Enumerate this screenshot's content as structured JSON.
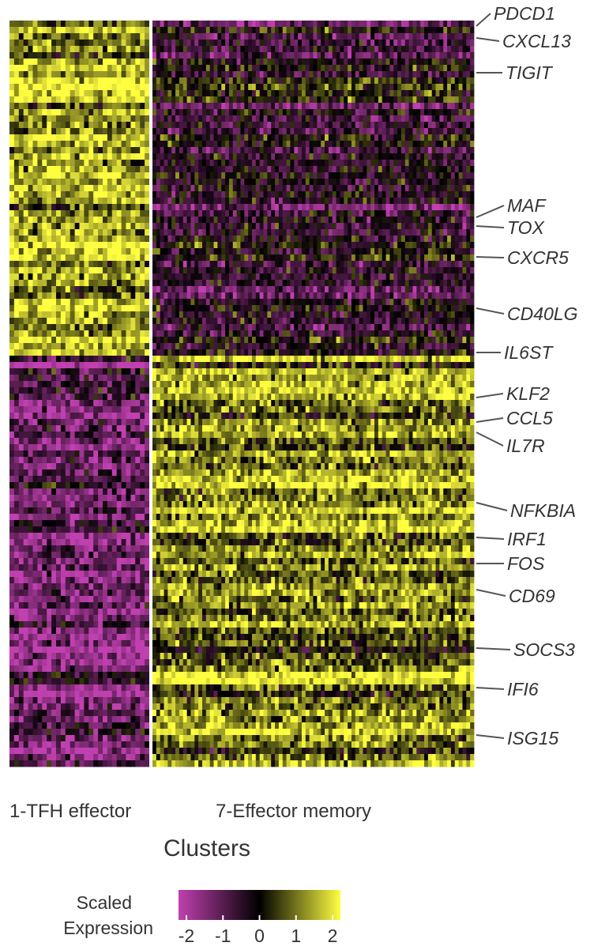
{
  "chart_data": {
    "type": "heatmap",
    "clusters": [
      "1-TFH effector",
      "7-Effector memory"
    ],
    "xlabel": "Clusters",
    "gene_labels": [
      "PDCD1",
      "CXCL13",
      "TIGIT",
      "MAF",
      "TOX",
      "CXCR5",
      "CD40LG",
      "IL6ST",
      "KLF2",
      "CCL5",
      "IL7R",
      "NFKBIA",
      "IRF1",
      "FOS",
      "CD69",
      "SOCS3",
      "IFI6",
      "ISG15"
    ],
    "gene_groups": [
      {
        "cluster_high": "1-TFH effector",
        "genes": [
          "PDCD1",
          "CXCL13",
          "TIGIT",
          "MAF",
          "TOX",
          "CXCR5",
          "CD40LG",
          "IL6ST"
        ],
        "mean_scaled_expression": {
          "1-TFH effector": 1.3,
          "7-Effector memory": -0.4
        }
      },
      {
        "cluster_high": "7-Effector memory",
        "genes": [
          "KLF2",
          "CCL5",
          "IL7R",
          "NFKBIA",
          "IRF1",
          "FOS",
          "CD69",
          "SOCS3",
          "IFI6",
          "ISG15"
        ],
        "mean_scaled_expression": {
          "1-TFH effector": -1.2,
          "7-Effector memory": 1.0
        }
      }
    ],
    "colorbar": {
      "title_line1": "Scaled",
      "title_line2": "Expression",
      "ticks": [
        "-2",
        "-1",
        "0",
        "1",
        "2"
      ],
      "range": [
        -2,
        2
      ],
      "colors": [
        "#c040b0",
        "#000000",
        "#ffff40"
      ]
    },
    "grid": false
  }
}
